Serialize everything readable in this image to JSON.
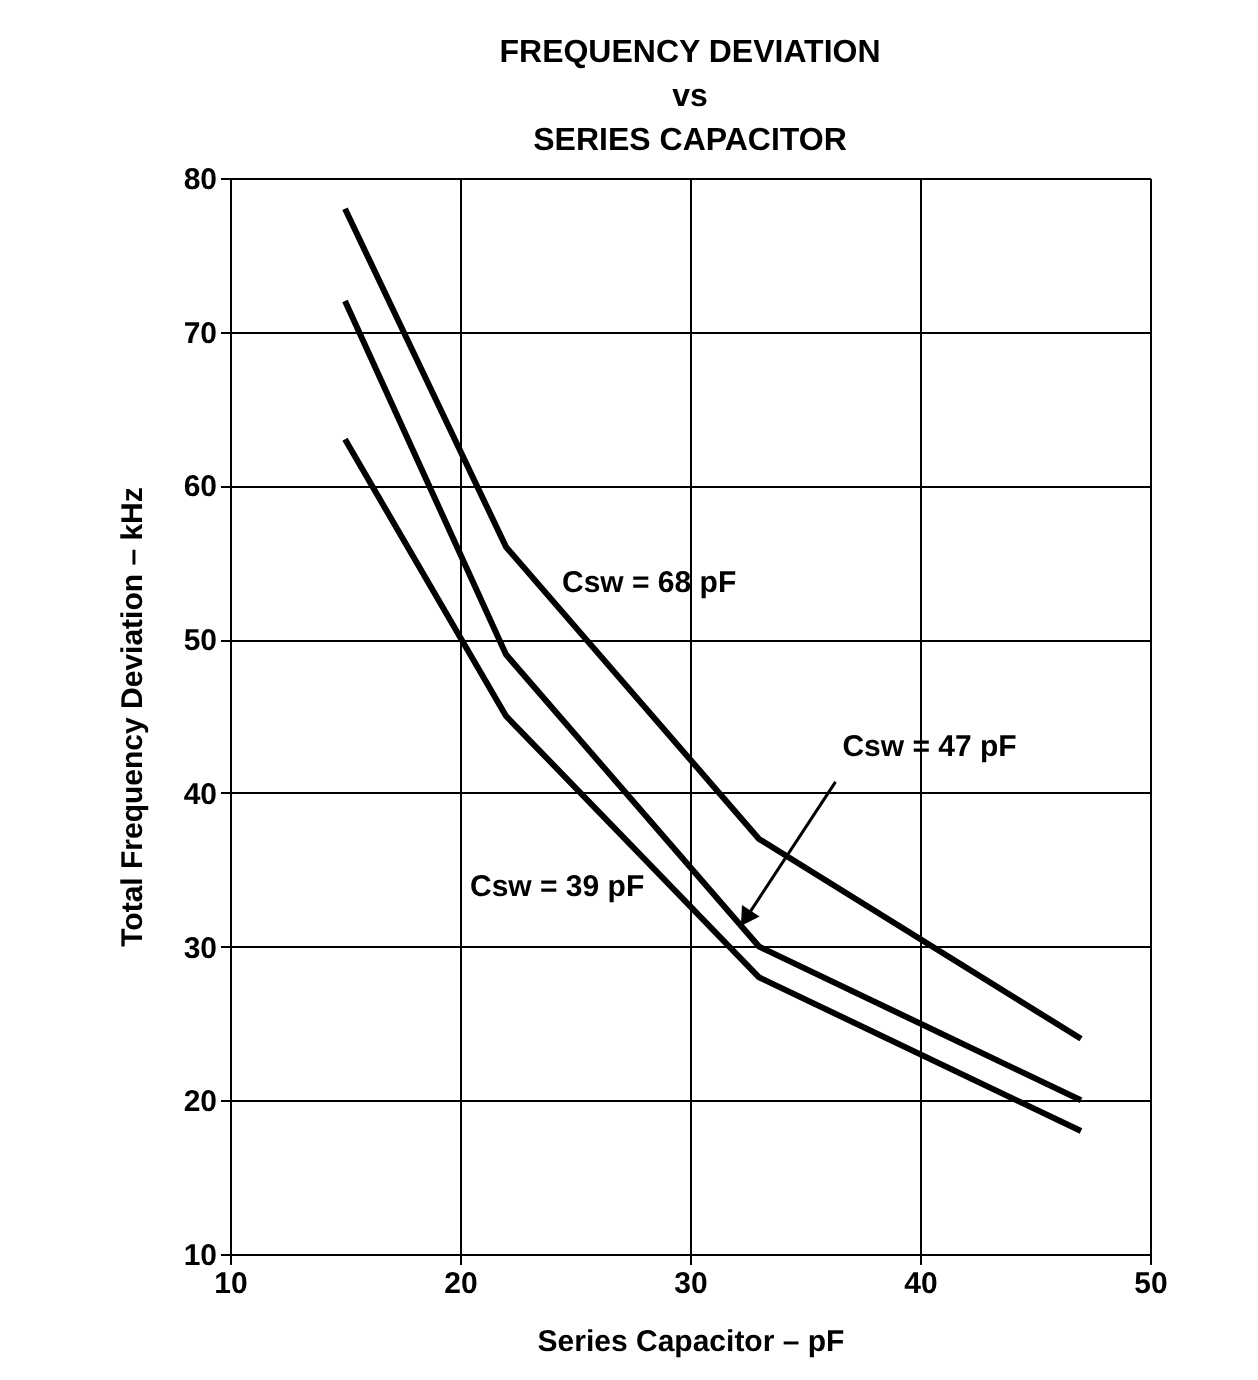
{
  "chart_data": {
    "type": "line",
    "title": [
      "FREQUENCY DEVIATION",
      "vs",
      "SERIES CAPACITOR"
    ],
    "xlabel": "Series Capacitor – pF",
    "ylabel": "Total Frequency Deviation – kHz",
    "x": [
      15,
      22,
      33,
      47
    ],
    "series": [
      {
        "color": "#000000",
        "values": [
          78,
          56,
          37,
          24
        ]
      },
      {
        "color": "#000000",
        "values": [
          72,
          49,
          30,
          20
        ]
      },
      {
        "color": "#000000",
        "values": [
          63,
          45,
          28,
          18
        ]
      }
    ],
    "annotations": [
      "Csw = 68 pF",
      {
        "text": "Csw = 47 pF",
        "x": 32.5,
        "y": 32
      },
      "Csw = 39 pF"
    ],
    "xlim": [
      10,
      50
    ],
    "xticks": [
      10,
      20,
      30,
      40,
      50
    ],
    "ylim": [
      10,
      80
    ],
    "yticks": [
      10,
      20,
      30,
      40,
      50,
      60,
      70,
      80
    ],
    "grid": true,
    "marker": "none",
    "line_style": "solid"
  }
}
